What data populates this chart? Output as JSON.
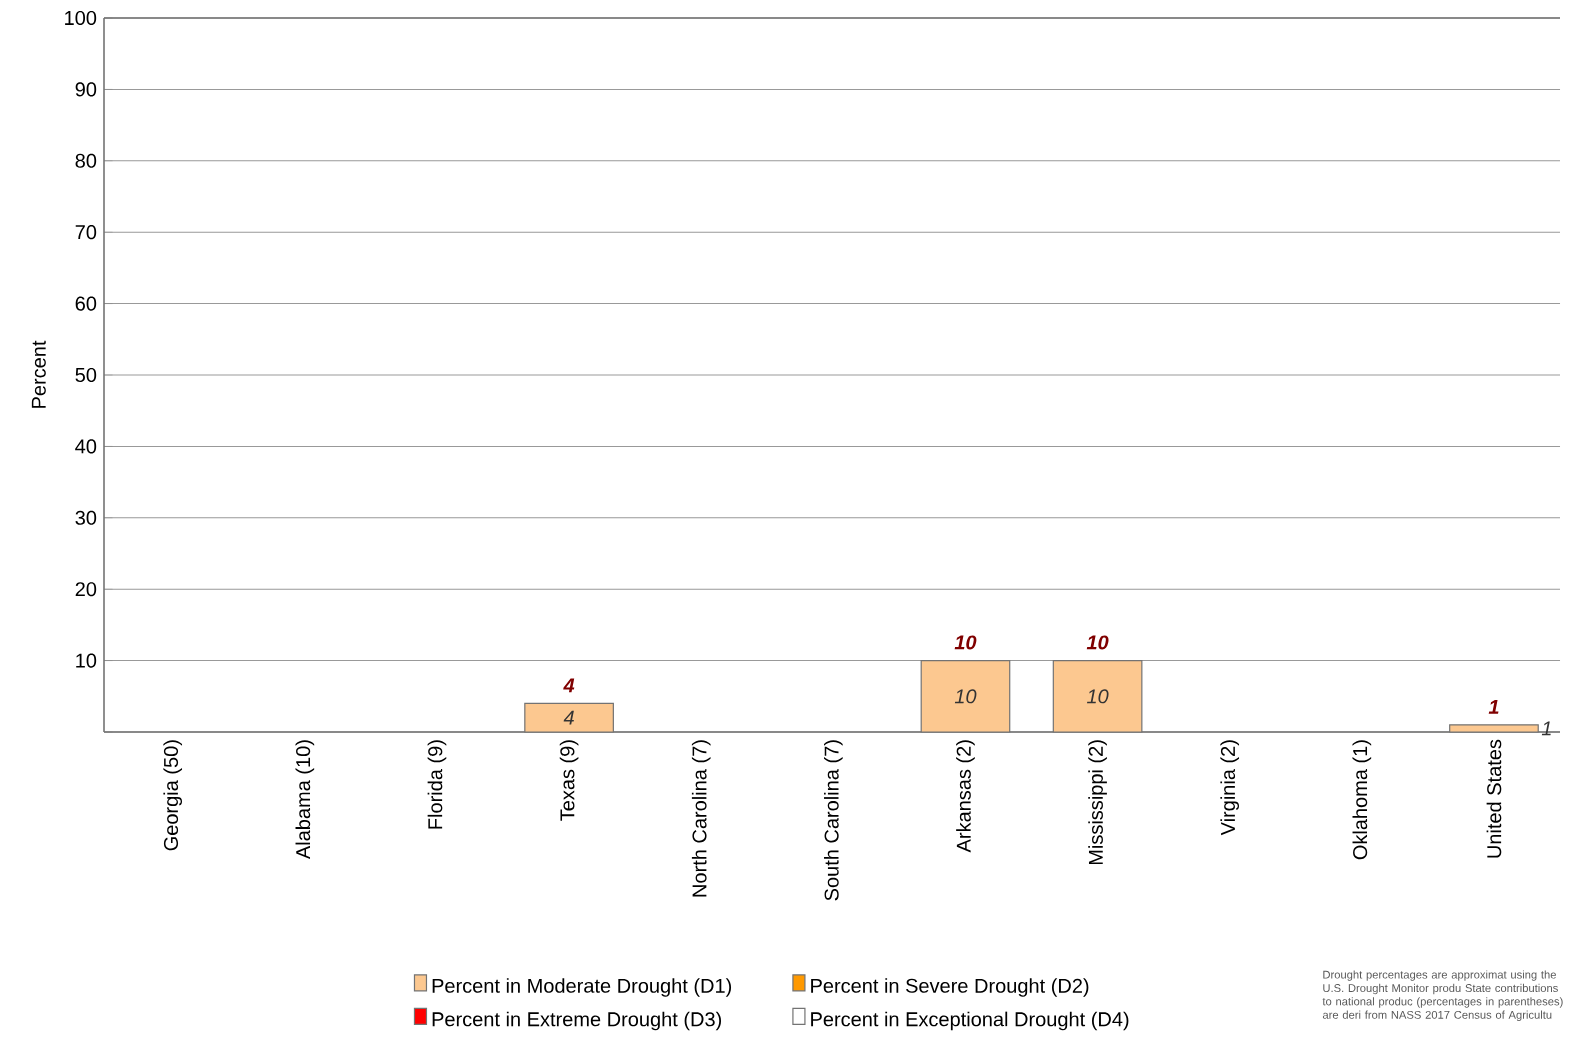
{
  "chart_data": {
    "type": "bar",
    "stacked": true,
    "ylabel": "Percent",
    "categories": [
      "Georgia (50)",
      "Alabama (10)",
      "Florida (9)",
      "Texas (9)",
      "North Carolina (7)",
      "South Carolina (7)",
      "Arkansas (2)",
      "Mississippi (2)",
      "Virginia (2)",
      "Oklahoma (1)",
      "United States"
    ],
    "series": [
      {
        "name": "Percent in Moderate Drought (D1)",
        "color": "#fcc890",
        "values": [
          0,
          0,
          0,
          4,
          0,
          0,
          10,
          10,
          0,
          0,
          1
        ],
        "value_labels": [
          null,
          null,
          null,
          "4",
          null,
          null,
          "10",
          "10",
          null,
          null,
          "1"
        ]
      },
      {
        "name": "Percent in Severe Drought (D2)",
        "color": "#ff9900",
        "values": [
          0,
          0,
          0,
          0,
          0,
          0,
          0,
          0,
          0,
          0,
          0
        ]
      },
      {
        "name": "Percent in Extreme Drought (D3)",
        "color": "#ff0000",
        "values": [
          0,
          0,
          0,
          0,
          0,
          0,
          0,
          0,
          0,
          0,
          0
        ]
      },
      {
        "name": "Percent in Exceptional Drought (D4)",
        "color": "#ffffff",
        "values": [
          0,
          0,
          0,
          0,
          0,
          0,
          0,
          0,
          0,
          0,
          0
        ]
      }
    ],
    "totals": [
      null,
      null,
      null,
      "4",
      null,
      null,
      "10",
      "10",
      null,
      null,
      "1"
    ],
    "ylim": [
      0,
      100
    ],
    "yticks": [
      {
        "value": 0,
        "label": null
      },
      10,
      20,
      30,
      40,
      50,
      60,
      70,
      80,
      90,
      100
    ],
    "grid": "y",
    "legend": "bottom",
    "annotations": [
      "Drought percentages are approximat using the U.S. Drought Monitor produ State contributions to national produc (percentages in parentheses) are deri from NASS 2017 Census of Agricultu"
    ]
  }
}
